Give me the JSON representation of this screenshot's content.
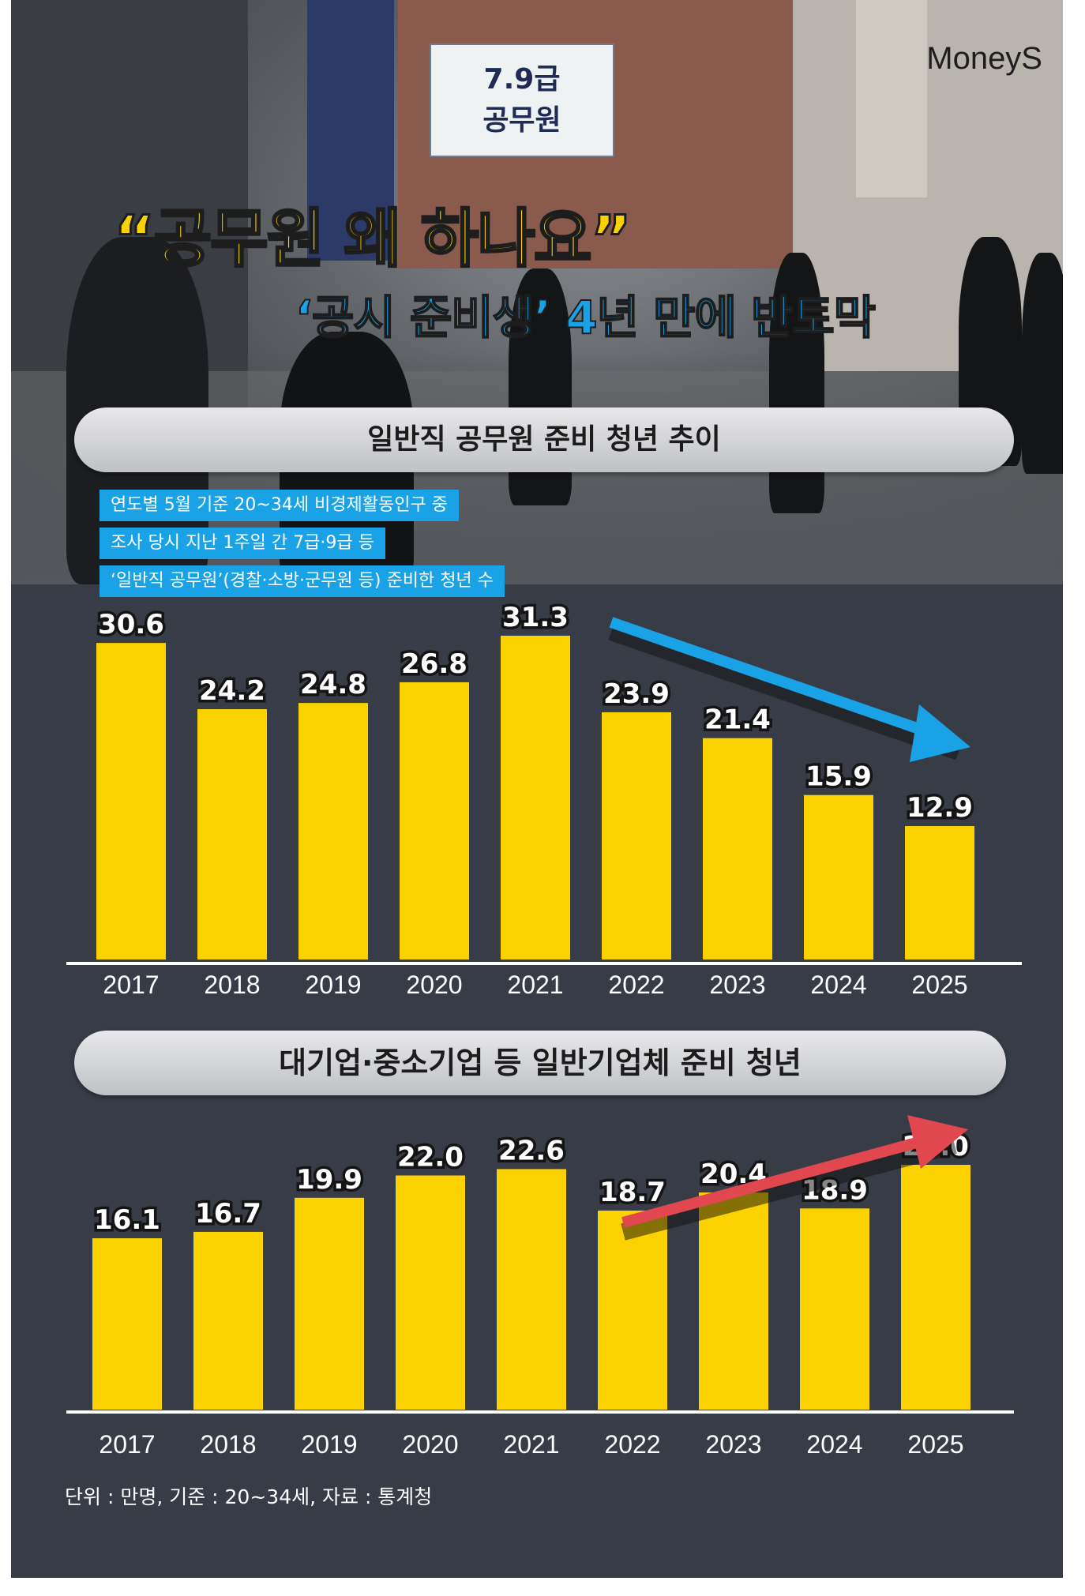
{
  "brand": "MoneyS",
  "photo_signs": [
    "7.9급",
    "공무원"
  ],
  "headline": "“공무원 왜 하나요”",
  "subheadline": "‘공시 준비생’ 4년 만에 반토막",
  "notes": [
    "연도별 5월 기준 20~34세 비경제활동인구 중",
    "조사 당시 지난 1주일 간 7급·9급 등",
    "‘일반직 공무원’(경찰·소방·군무원 등) 준비한 청년 수"
  ],
  "footnote": "단위 : 만명, 기준 : 20~34세, 자료 : 통계청",
  "colors": {
    "bar": "#fcd100",
    "background": "#373c47",
    "arrow_down": "#1aa2e6",
    "arrow_up": "#e0474f",
    "note_bg": "#1aa2e6"
  },
  "chart_data": [
    {
      "type": "bar",
      "title": "일반직 공무원 준비 청년 추이",
      "categories": [
        "2017",
        "2018",
        "2019",
        "2020",
        "2021",
        "2022",
        "2023",
        "2024",
        "2025"
      ],
      "values": [
        30.6,
        24.2,
        24.8,
        26.8,
        31.3,
        23.9,
        21.4,
        15.9,
        12.9
      ],
      "value_labels": [
        "30.6",
        "24.2",
        "24.8",
        "26.8",
        "31.3",
        "23.9",
        "21.4",
        "15.9",
        "12.9"
      ],
      "trend_arrow": "down"
    },
    {
      "type": "bar",
      "title": "대기업·중소기업 등 일반기업체 준비 청년",
      "categories": [
        "2017",
        "2018",
        "2019",
        "2020",
        "2021",
        "2022",
        "2023",
        "2024",
        "2025"
      ],
      "values": [
        16.1,
        16.7,
        19.9,
        22.0,
        22.6,
        18.7,
        20.4,
        18.9,
        23.0
      ],
      "value_labels": [
        "16.1",
        "16.7",
        "19.9",
        "22.0",
        "22.6",
        "18.7",
        "20.4",
        "18.9",
        "23.0"
      ],
      "trend_arrow": "up"
    }
  ]
}
